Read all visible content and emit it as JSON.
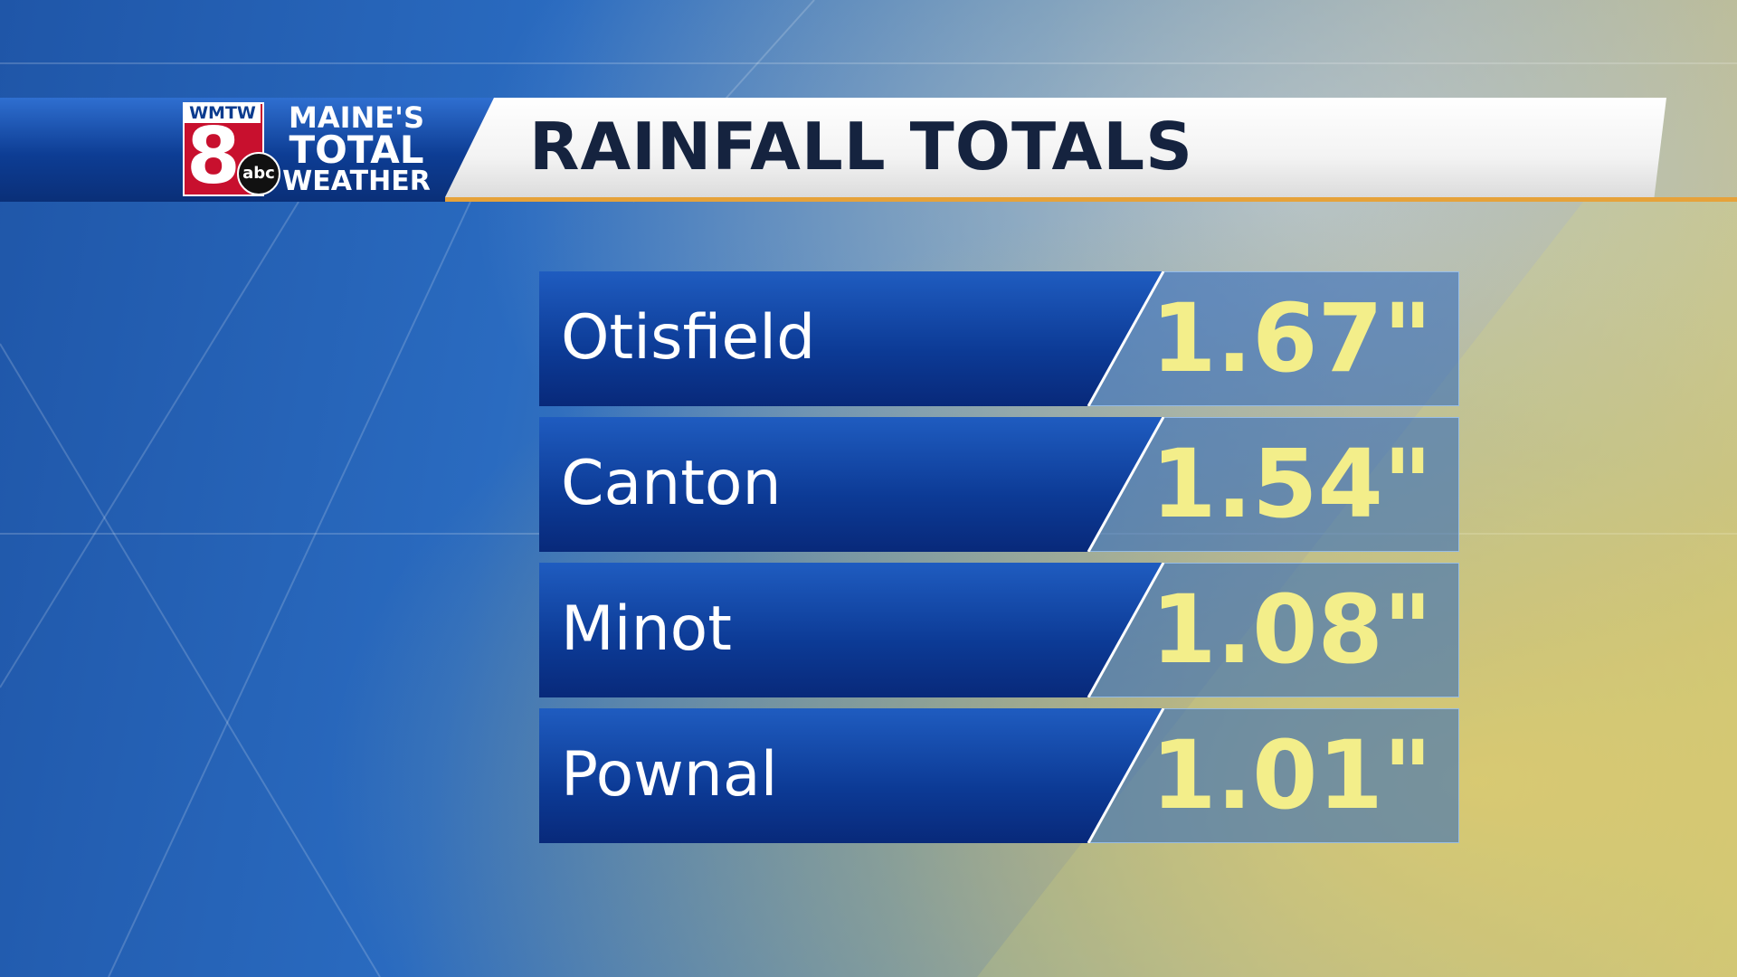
{
  "header": {
    "logo": {
      "station": "WMTW",
      "channel": "8",
      "network": "abc",
      "brand": [
        "MAINE'S",
        "TOTAL",
        "WEATHER"
      ]
    },
    "title": "RAINFALL TOTALS"
  },
  "rows": [
    {
      "location": "Otisfield",
      "total": "1.67\""
    },
    {
      "location": "Canton",
      "total": "1.54\""
    },
    {
      "location": "Minot",
      "total": "1.08\""
    },
    {
      "location": "Pownal",
      "total": "1.01\""
    }
  ]
}
